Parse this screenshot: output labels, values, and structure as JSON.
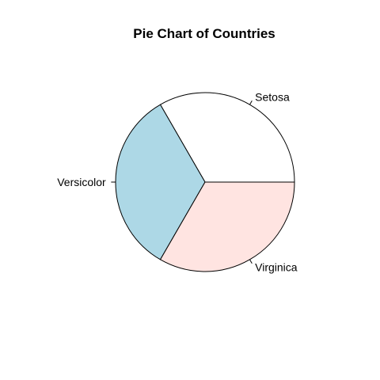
{
  "chart_data": {
    "type": "pie",
    "title": "Pie Chart of Countries",
    "slices": [
      {
        "label": "Setosa",
        "value": 50,
        "color": "#ffffff"
      },
      {
        "label": "Versicolor",
        "value": 50,
        "color": "#add8e6"
      },
      {
        "label": "Virginica",
        "value": 50,
        "color": "#ffe4e1"
      }
    ],
    "start_angle_deg": 0,
    "direction": "counterclockwise",
    "border_color": "#000000"
  }
}
